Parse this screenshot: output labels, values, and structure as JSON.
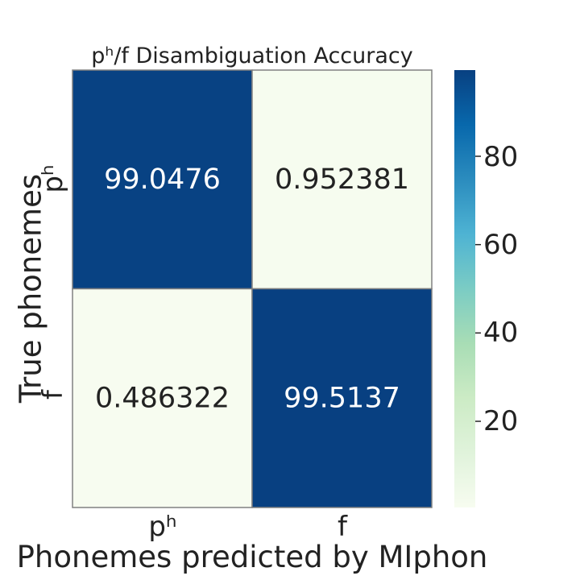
{
  "chart_data": {
    "type": "heatmap",
    "title": "pʰ/f Disambiguation Accuracy",
    "xlabel": "Phonemes predicted by MIphon",
    "ylabel": "True phonemes",
    "x_categories": [
      "pʰ",
      "f"
    ],
    "y_categories": [
      "pʰ",
      "f"
    ],
    "values": [
      [
        99.0476,
        0.952381
      ],
      [
        0.486322,
        99.5137
      ]
    ],
    "value_labels": [
      [
        "99.0476",
        "0.952381"
      ],
      [
        "0.486322",
        "99.5137"
      ]
    ],
    "colorbar": {
      "range": [
        0.486322,
        99.5137
      ],
      "ticks": [
        "20",
        "40",
        "60",
        "80"
      ],
      "tick_values": [
        20,
        40,
        60,
        80
      ],
      "colormap": "GnBu",
      "low_color": "#f7fcf0",
      "high_color": "#084081"
    },
    "cell_border_color": "#808080"
  }
}
